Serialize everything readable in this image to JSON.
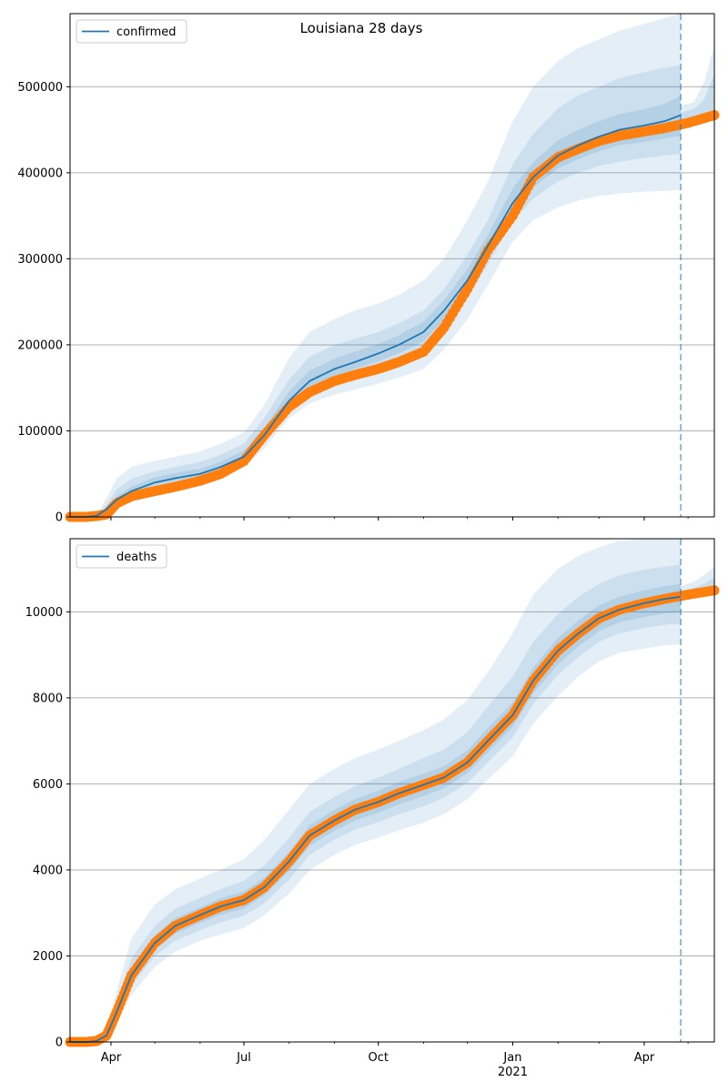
{
  "figure": {
    "suptitle": "Louisiana 28 days"
  },
  "colors": {
    "model_line": "#1f77b4",
    "band": "#1f77b4",
    "observed": "#ff7f0e",
    "grid": "#b0b0b0",
    "cutoff_line": "#1f77b4"
  },
  "x_axis": {
    "tick_labels": [
      "Apr",
      "Jul",
      "Oct",
      "Jan",
      "Apr"
    ],
    "tick_dates": [
      "2020-04-01",
      "2020-07-01",
      "2020-10-01",
      "2021-01-01",
      "2021-04-01"
    ],
    "year_label": "2021",
    "year_label_date": "2021-01-01",
    "range": [
      "2020-03-04",
      "2021-05-19"
    ],
    "forecast_start": "2021-04-26"
  },
  "chart_data": [
    {
      "type": "line",
      "legend": "confirmed",
      "legend_position": "top-left",
      "grid": "horizontal",
      "ylim": [
        0,
        585000
      ],
      "yticks": [
        0,
        100000,
        200000,
        300000,
        400000,
        500000
      ],
      "ytick_labels": [
        "0",
        "100000",
        "200000",
        "300000",
        "400000",
        "500000"
      ],
      "model": {
        "x": [
          "2020-03-04",
          "2020-03-15",
          "2020-03-22",
          "2020-03-29",
          "2020-04-05",
          "2020-04-15",
          "2020-05-01",
          "2020-05-15",
          "2020-06-01",
          "2020-06-15",
          "2020-07-01",
          "2020-07-15",
          "2020-08-01",
          "2020-08-15",
          "2020-09-01",
          "2020-09-15",
          "2020-10-01",
          "2020-10-15",
          "2020-11-01",
          "2020-11-15",
          "2020-12-01",
          "2020-12-15",
          "2021-01-01",
          "2021-01-15",
          "2021-02-01",
          "2021-02-15",
          "2021-03-01",
          "2021-03-15",
          "2021-04-01",
          "2021-04-15",
          "2021-04-26"
        ],
        "y": [
          0,
          0,
          1000,
          9000,
          20000,
          30000,
          40000,
          45000,
          50000,
          58000,
          70000,
          95000,
          135000,
          158000,
          172000,
          180000,
          190000,
          200000,
          215000,
          240000,
          275000,
          315000,
          365000,
          395000,
          420000,
          432000,
          442000,
          450000,
          455000,
          460000,
          467000
        ]
      },
      "observed": {
        "x": [
          "2020-03-04",
          "2020-03-15",
          "2020-03-22",
          "2020-03-29",
          "2020-04-05",
          "2020-04-15",
          "2020-05-01",
          "2020-05-15",
          "2020-06-01",
          "2020-06-15",
          "2020-07-01",
          "2020-07-15",
          "2020-08-01",
          "2020-08-15",
          "2020-09-01",
          "2020-09-15",
          "2020-10-01",
          "2020-10-15",
          "2020-11-01",
          "2020-11-15",
          "2020-12-01",
          "2020-12-15",
          "2021-01-01",
          "2021-01-15",
          "2021-02-01",
          "2021-02-15",
          "2021-03-01",
          "2021-03-15",
          "2021-04-01",
          "2021-04-15",
          "2021-05-01",
          "2021-05-19"
        ],
        "y": [
          0,
          0,
          1000,
          3000,
          16000,
          24000,
          30000,
          35000,
          42000,
          50000,
          65000,
          95000,
          128000,
          145000,
          158000,
          165000,
          172000,
          180000,
          192000,
          220000,
          265000,
          310000,
          350000,
          395000,
          418000,
          428000,
          437000,
          443000,
          448000,
          452000,
          458000,
          467000
        ]
      },
      "bands": [
        {
          "level": "outer",
          "lower": [
            0,
            0,
            1000,
            5000,
            15000,
            22000,
            32000,
            36000,
            42000,
            48000,
            58000,
            80000,
            115000,
            132000,
            142000,
            148000,
            155000,
            162000,
            172000,
            195000,
            230000,
            270000,
            320000,
            345000,
            360000,
            368000,
            373000,
            376000,
            378000,
            379000,
            380000
          ],
          "upper": [
            0,
            0,
            2000,
            22000,
            45000,
            58000,
            65000,
            70000,
            76000,
            85000,
            98000,
            130000,
            185000,
            215000,
            230000,
            240000,
            248000,
            258000,
            275000,
            300000,
            345000,
            390000,
            460000,
            500000,
            530000,
            545000,
            555000,
            565000,
            573000,
            580000,
            585000
          ]
        },
        {
          "level": "middle",
          "lower": [
            0,
            0,
            1000,
            6000,
            17000,
            25000,
            35000,
            40000,
            46000,
            52000,
            63000,
            87000,
            124000,
            144000,
            156000,
            163000,
            171000,
            180000,
            193000,
            218000,
            254000,
            294000,
            343000,
            370000,
            390000,
            400000,
            408000,
            413000,
            417000,
            420000,
            422000
          ],
          "upper": [
            0,
            0,
            1500,
            15000,
            32000,
            44000,
            53000,
            58000,
            64000,
            72000,
            85000,
            115000,
            160000,
            186000,
            200000,
            207000,
            215000,
            225000,
            240000,
            265000,
            305000,
            345000,
            410000,
            445000,
            475000,
            490000,
            500000,
            510000,
            517000,
            522000,
            525000
          ]
        },
        {
          "level": "inner",
          "lower": [
            0,
            0,
            1000,
            7000,
            18000,
            27000,
            37000,
            42000,
            48000,
            55000,
            66000,
            91000,
            129000,
            151000,
            164000,
            172000,
            181000,
            190000,
            204000,
            229000,
            265000,
            305000,
            354000,
            383000,
            405000,
            416000,
            425000,
            432000,
            436000,
            440000,
            443000
          ],
          "upper": [
            0,
            0,
            1200,
            11000,
            24000,
            35000,
            46000,
            51000,
            56000,
            64000,
            77000,
            104000,
            146000,
            170000,
            184000,
            192000,
            201000,
            211000,
            227000,
            252000,
            288000,
            328000,
            382000,
            412000,
            438000,
            450000,
            460000,
            468000,
            474000,
            480000,
            490000
          ]
        }
      ],
      "forecast_bands": [
        {
          "x": [
            "2021-04-26",
            "2021-05-05",
            "2021-05-12",
            "2021-05-19"
          ],
          "lower": [
            452000,
            457000,
            460000,
            462000
          ],
          "upper": [
            478000,
            482000,
            505000,
            548000
          ]
        },
        {
          "x": [
            "2021-04-26",
            "2021-05-05",
            "2021-05-12",
            "2021-05-19"
          ],
          "lower": [
            455000,
            459000,
            462000,
            464000
          ],
          "upper": [
            470000,
            474000,
            485000,
            515000
          ]
        }
      ]
    },
    {
      "type": "line",
      "legend": "deaths",
      "legend_position": "top-left",
      "grid": "horizontal",
      "ylim": [
        0,
        11700
      ],
      "yticks": [
        0,
        2000,
        4000,
        6000,
        8000,
        10000
      ],
      "ytick_labels": [
        "0",
        "2000",
        "4000",
        "6000",
        "8000",
        "10000"
      ],
      "model": {
        "x": [
          "2020-03-04",
          "2020-03-15",
          "2020-03-22",
          "2020-03-29",
          "2020-04-05",
          "2020-04-15",
          "2020-05-01",
          "2020-05-15",
          "2020-06-01",
          "2020-06-15",
          "2020-07-01",
          "2020-07-15",
          "2020-08-01",
          "2020-08-15",
          "2020-09-01",
          "2020-09-15",
          "2020-10-01",
          "2020-10-15",
          "2020-11-01",
          "2020-11-15",
          "2020-12-01",
          "2020-12-15",
          "2021-01-01",
          "2021-01-15",
          "2021-02-01",
          "2021-02-15",
          "2021-03-01",
          "2021-03-15",
          "2021-04-01",
          "2021-04-15",
          "2021-04-26"
        ],
        "y": [
          0,
          0,
          20,
          150,
          700,
          1550,
          2300,
          2700,
          2950,
          3150,
          3300,
          3600,
          4200,
          4800,
          5150,
          5400,
          5580,
          5780,
          5980,
          6150,
          6500,
          7000,
          7600,
          8400,
          9100,
          9500,
          9850,
          10050,
          10200,
          10300,
          10350
        ]
      },
      "observed": {
        "x": [
          "2020-03-04",
          "2020-03-15",
          "2020-03-22",
          "2020-03-29",
          "2020-04-05",
          "2020-04-15",
          "2020-05-01",
          "2020-05-15",
          "2020-06-01",
          "2020-06-15",
          "2020-07-01",
          "2020-07-15",
          "2020-08-01",
          "2020-08-15",
          "2020-09-01",
          "2020-09-15",
          "2020-10-01",
          "2020-10-15",
          "2020-11-01",
          "2020-11-15",
          "2020-12-01",
          "2020-12-15",
          "2021-01-01",
          "2021-01-15",
          "2021-02-01",
          "2021-02-15",
          "2021-03-01",
          "2021-03-15",
          "2021-04-01",
          "2021-04-15",
          "2021-05-01",
          "2021-05-19"
        ],
        "y": [
          0,
          0,
          20,
          150,
          700,
          1550,
          2300,
          2700,
          2950,
          3150,
          3300,
          3600,
          4200,
          4800,
          5150,
          5400,
          5580,
          5780,
          5980,
          6150,
          6500,
          7000,
          7600,
          8400,
          9100,
          9500,
          9850,
          10050,
          10200,
          10300,
          10400,
          10500
        ]
      },
      "bands": [
        {
          "level": "outer",
          "lower": [
            0,
            0,
            10,
            80,
            450,
            1100,
            1750,
            2100,
            2350,
            2500,
            2650,
            2950,
            3450,
            4000,
            4350,
            4580,
            4750,
            4920,
            5100,
            5300,
            5650,
            6100,
            6650,
            7400,
            8050,
            8500,
            8850,
            9050,
            9150,
            9220,
            9250
          ],
          "upper": [
            0,
            0,
            40,
            300,
            1200,
            2400,
            3200,
            3550,
            3800,
            4000,
            4250,
            4700,
            5400,
            6000,
            6350,
            6600,
            6800,
            7000,
            7250,
            7500,
            7950,
            8600,
            9500,
            10400,
            11000,
            11300,
            11500,
            11650,
            11700,
            11700,
            11700
          ]
        },
        {
          "level": "middle",
          "lower": [
            0,
            0,
            15,
            110,
            550,
            1300,
            2000,
            2350,
            2600,
            2780,
            2930,
            3230,
            3780,
            4350,
            4700,
            4940,
            5110,
            5290,
            5480,
            5680,
            6030,
            6500,
            7080,
            7860,
            8530,
            8950,
            9300,
            9500,
            9620,
            9700,
            9720
          ],
          "upper": [
            0,
            0,
            30,
            220,
            950,
            1950,
            2700,
            3100,
            3350,
            3550,
            3750,
            4100,
            4750,
            5350,
            5700,
            5950,
            6150,
            6350,
            6600,
            6800,
            7200,
            7800,
            8500,
            9300,
            9950,
            10350,
            10650,
            10850,
            10980,
            11050,
            11100
          ]
        },
        {
          "level": "inner",
          "lower": [
            0,
            0,
            18,
            130,
            620,
            1420,
            2150,
            2520,
            2770,
            2960,
            3100,
            3410,
            3980,
            4560,
            4910,
            5150,
            5330,
            5520,
            5720,
            5900,
            6250,
            6730,
            7320,
            8100,
            8780,
            9200,
            9550,
            9760,
            9880,
            9960,
            9990
          ],
          "upper": [
            0,
            0,
            25,
            180,
            820,
            1720,
            2480,
            2880,
            3130,
            3340,
            3500,
            3820,
            4420,
            5040,
            5400,
            5650,
            5840,
            6040,
            6240,
            6410,
            6780,
            7300,
            7900,
            8700,
            9400,
            9800,
            10150,
            10350,
            10500,
            10600,
            10650
          ]
        }
      ],
      "forecast_bands": [
        {
          "x": [
            "2021-04-26",
            "2021-05-05",
            "2021-05-12",
            "2021-05-19"
          ],
          "lower": [
            10300,
            10380,
            10420,
            10460
          ],
          "upper": [
            10600,
            10700,
            10850,
            11050
          ]
        },
        {
          "x": [
            "2021-04-26",
            "2021-05-05",
            "2021-05-12",
            "2021-05-19"
          ],
          "lower": [
            10330,
            10400,
            10440,
            10480
          ],
          "upper": [
            10480,
            10560,
            10650,
            10800
          ]
        }
      ]
    }
  ]
}
